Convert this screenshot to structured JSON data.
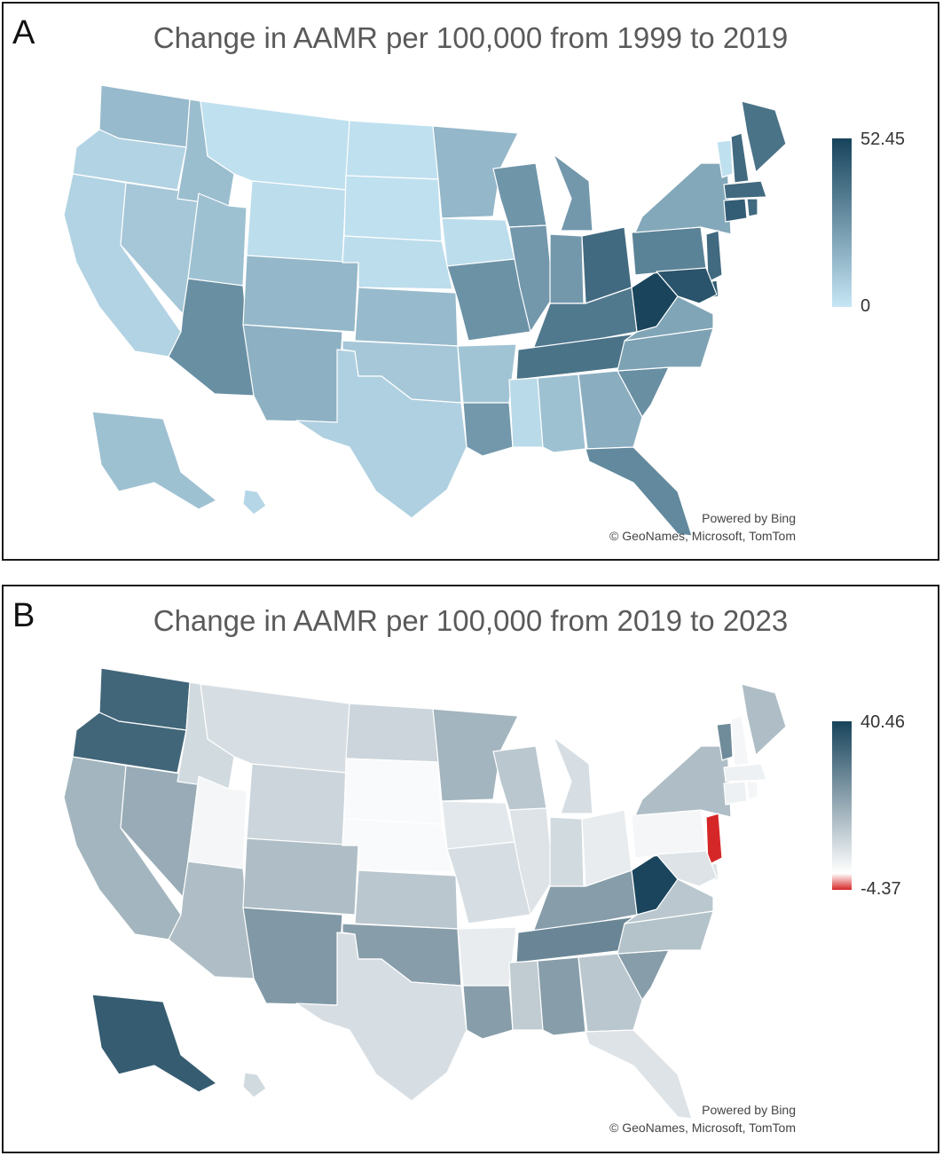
{
  "panels": [
    {
      "letter": "A",
      "title": "Change in AAMR per 100,000 from 1999 to 2019",
      "legend": {
        "max_label": "52.45",
        "min_label": "0",
        "max_value": 52.45,
        "min_value": 0,
        "colors": {
          "low": "#c6e6f5",
          "high": "#17435b"
        }
      },
      "credit": {
        "line1": "Powered by Bing",
        "line2": "© GeoNames, Microsoft, TomTom"
      },
      "state_values": {
        "WA": 14,
        "OR": 6,
        "CA": 6,
        "NV": 10,
        "ID": 13,
        "MT": 2,
        "WY": 3,
        "UT": 12,
        "AZ": 28,
        "CO": 15,
        "NM": 17,
        "ND": 2,
        "SD": 2,
        "NE": 3,
        "KS": 14,
        "OK": 10,
        "TX": 7,
        "MN": 15,
        "IA": 3,
        "MO": 27,
        "AR": 11,
        "LA": 25,
        "WI": 26,
        "IL": 25,
        "MI": 25,
        "IN": 25,
        "OH": 40,
        "KY": 35,
        "TN": 37,
        "MS": 4,
        "AL": 12,
        "GA": 18,
        "FL": 30,
        "SC": 28,
        "NC": 22,
        "VA": 21,
        "WV": 52,
        "PA": 32,
        "NY": 20,
        "VT": 2,
        "NH": 40,
        "ME": 37,
        "MA": 40,
        "CT": 44,
        "RI": 40,
        "NJ": 40,
        "DE": 45,
        "MD": 47,
        "AK": 12,
        "HI": 5
      }
    },
    {
      "letter": "B",
      "title": "Change in AAMR per 100,000 from 2019 to 2023",
      "legend": {
        "max_label": "40.46",
        "min_label": "-4.37",
        "max_value": 40.46,
        "min_value": -4.37,
        "colors": {
          "low": "#d62728",
          "mid": "#ffffff",
          "high": "#17435b"
        }
      },
      "credit": {
        "line1": "Powered by Bing",
        "line2": "© GeoNames, Microsoft, TomTom"
      },
      "state_values": {
        "WA": 33,
        "OR": 33,
        "CA": 16,
        "NV": 18,
        "ID": 8,
        "MT": 7,
        "WY": 9,
        "UT": 2,
        "AZ": 14,
        "CO": 14,
        "NM": 22,
        "ND": 9,
        "SD": 1,
        "NE": 1,
        "KS": 12,
        "OK": 21,
        "TX": 7,
        "MN": 16,
        "IA": 5,
        "MO": 7,
        "AR": 4,
        "LA": 21,
        "WI": 12,
        "IL": 6,
        "MI": 7,
        "IN": 8,
        "OH": 4,
        "KY": 21,
        "TN": 26,
        "MS": 11,
        "AL": 21,
        "GA": 12,
        "FL": 6,
        "SC": 21,
        "NC": 13,
        "VA": 12,
        "WV": 40,
        "PA": 2,
        "NY": 14,
        "VT": 25,
        "NH": 2,
        "ME": 14,
        "MA": 3,
        "CT": 3,
        "RI": 2,
        "NJ": -4.37,
        "DE": 6,
        "MD": 6,
        "AK": 35,
        "HI": 8
      }
    }
  ]
}
